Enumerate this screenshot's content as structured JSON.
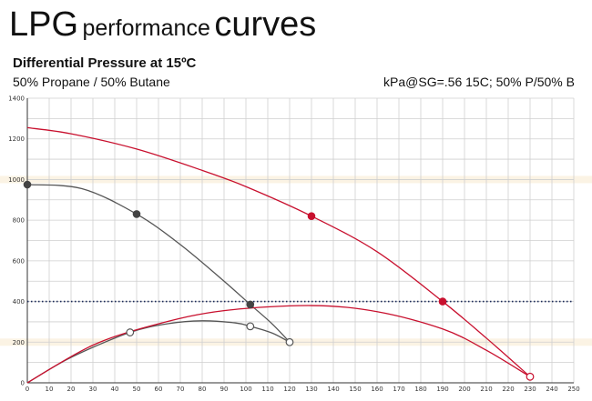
{
  "header": {
    "title_part1": "LPG",
    "title_part2": "performance",
    "title_part3": "curves",
    "subtitle": "Differential Pressure at 15ºC",
    "mixture": "50% Propane / 50% Butane",
    "note": "kPa@SG=.56     15C; 50% P/50% B"
  },
  "chart_data": {
    "type": "line",
    "title": "Differential Pressure at 15ºC",
    "xlim": [
      0,
      250
    ],
    "ylim": [
      0,
      1400
    ],
    "x_ticks": [
      0,
      10,
      20,
      30,
      40,
      50,
      60,
      70,
      80,
      90,
      100,
      110,
      120,
      130,
      140,
      150,
      160,
      170,
      180,
      190,
      200,
      210,
      220,
      230,
      240,
      250
    ],
    "y_ticks": [
      0,
      200,
      400,
      600,
      800,
      1000,
      1200,
      1400
    ],
    "grid": true,
    "reference_line": {
      "y": 400,
      "style": "dotted"
    },
    "series": [
      {
        "color": "#c8102e",
        "points": [
          [
            0,
            1255
          ],
          [
            20,
            1225
          ],
          [
            50,
            1150
          ],
          [
            80,
            1045
          ],
          [
            100,
            965
          ],
          [
            130,
            820
          ],
          [
            160,
            645
          ],
          [
            190,
            400
          ],
          [
            210,
            220
          ],
          [
            230,
            30
          ]
        ],
        "markers": [
          [
            130,
            820
          ],
          [
            190,
            400
          ]
        ],
        "open_markers": [
          [
            230,
            30
          ]
        ]
      },
      {
        "color": "#555555",
        "points": [
          [
            0,
            975
          ],
          [
            25,
            955
          ],
          [
            50,
            830
          ],
          [
            70,
            680
          ],
          [
            90,
            500
          ],
          [
            102,
            385
          ],
          [
            112,
            290
          ],
          [
            120,
            200
          ]
        ],
        "markers": [
          [
            0,
            975
          ],
          [
            50,
            830
          ],
          [
            102,
            385
          ]
        ],
        "open_markers": [
          [
            120,
            200
          ]
        ]
      },
      {
        "color": "#555555",
        "points": [
          [
            0,
            0
          ],
          [
            20,
            125
          ],
          [
            47,
            248
          ],
          [
            65,
            292
          ],
          [
            80,
            305
          ],
          [
            95,
            295
          ],
          [
            102,
            278
          ],
          [
            112,
            245
          ],
          [
            120,
            200
          ]
        ],
        "markers": [],
        "open_markers": [
          [
            47,
            248
          ],
          [
            102,
            278
          ]
        ]
      },
      {
        "color": "#c8102e",
        "points": [
          [
            0,
            0
          ],
          [
            30,
            185
          ],
          [
            60,
            290
          ],
          [
            90,
            355
          ],
          [
            130,
            380
          ],
          [
            160,
            350
          ],
          [
            190,
            265
          ],
          [
            210,
            160
          ],
          [
            230,
            30
          ]
        ],
        "markers": [],
        "open_markers": []
      }
    ]
  }
}
